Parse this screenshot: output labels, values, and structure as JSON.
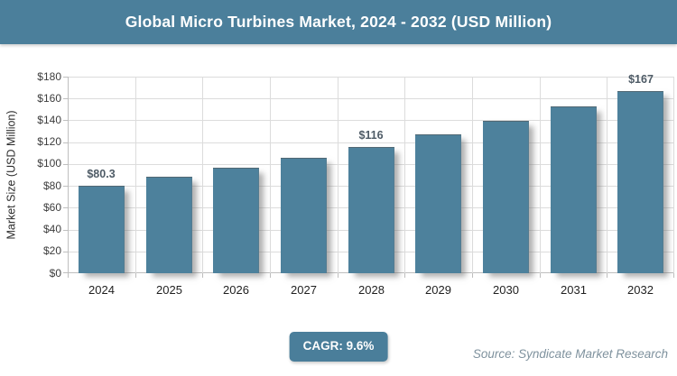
{
  "header": {
    "title": "Global Micro Turbines Market, 2024 - 2032 (USD Million)"
  },
  "chart_data": {
    "type": "bar",
    "title": "Global Micro Turbines Market, 2024 - 2032 (USD Million)",
    "categories": [
      "2024",
      "2025",
      "2026",
      "2027",
      "2028",
      "2029",
      "2030",
      "2031",
      "2032"
    ],
    "values": [
      80.3,
      88,
      96.5,
      105.8,
      116,
      127.1,
      139.3,
      152.7,
      167
    ],
    "point_labels": [
      "$80.3",
      "",
      "",
      "",
      "$116",
      "",
      "",
      "",
      "$167"
    ],
    "xlabel": "",
    "ylabel": "Market Size (USD Million)",
    "ylim": [
      0,
      180
    ],
    "ytick_step": 20,
    "ytick_labels": [
      "$0",
      "$20",
      "$40",
      "$60",
      "$80",
      "$100",
      "$120",
      "$140",
      "$160",
      "$180"
    ],
    "grid": true,
    "legend": "none"
  },
  "footer": {
    "cagr_label": "CAGR: 9.6%",
    "source": "Source: Syndicate Market Research"
  },
  "colors": {
    "bar": "#4d819c",
    "header_bg": "#4b7f9b",
    "badge_bg": "#4a7e9a",
    "grid": "#dcdcdc",
    "axis": "#bfbfbf",
    "data_label": "#4e5b66",
    "source_text": "#7f929e"
  }
}
